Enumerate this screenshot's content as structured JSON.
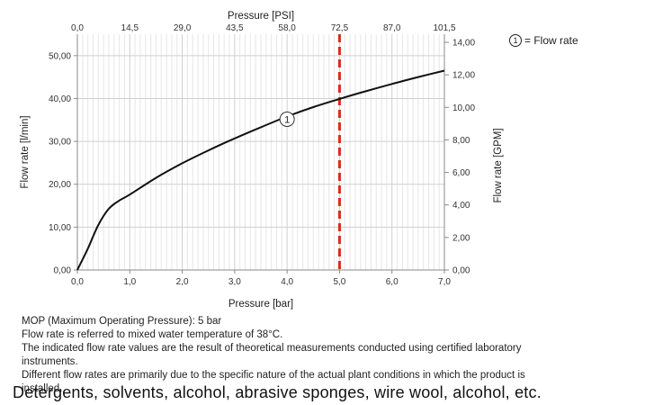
{
  "chart_data": {
    "type": "line",
    "title": "",
    "xlabel": "Pressure [bar]",
    "x2label": "Pressure [PSI]",
    "ylabel": "Flow rate [l/min]",
    "y2label": "Flow rate [GPM]",
    "xlim": [
      0,
      7
    ],
    "ylim": [
      0,
      55
    ],
    "y2lim": [
      0,
      14.5
    ],
    "x_ticks": [
      "0,0",
      "1,0",
      "2,0",
      "3,0",
      "4,0",
      "5,0",
      "6,0",
      "7,0"
    ],
    "x2_ticks": [
      "0,0",
      "14,5",
      "29,0",
      "43,5",
      "58,0",
      "72,5",
      "87,0",
      "101,5"
    ],
    "y_ticks": [
      "0,00",
      "10,00",
      "20,00",
      "30,00",
      "40,00",
      "50,00"
    ],
    "y2_ticks": [
      "0,00",
      "2,00",
      "4,00",
      "6,00",
      "8,00",
      "10,00",
      "12,00",
      "14,00"
    ],
    "grid": true,
    "series": [
      {
        "name": "Flow rate",
        "color": "#111111",
        "x": [
          0,
          0.2,
          0.4,
          0.6,
          0.8,
          1.0,
          1.5,
          2.0,
          2.5,
          3.0,
          3.5,
          4.0,
          4.5,
          5.0,
          5.5,
          6.0,
          6.5,
          7.0
        ],
        "y": [
          0,
          5,
          10.5,
          14.3,
          16.2,
          17.6,
          21.5,
          24.9,
          27.9,
          30.7,
          33.3,
          35.8,
          38.0,
          39.9,
          41.7,
          43.4,
          45.0,
          46.5
        ]
      }
    ],
    "annotations": [
      {
        "text": "1",
        "x": 4.0,
        "y": 36.0
      }
    ],
    "reference_line": {
      "x": 5.0,
      "color": "#d62d20",
      "style": "dashed"
    },
    "legend": {
      "marker": "1",
      "text": "= Flow rate",
      "placement": "top-right"
    }
  },
  "notes": [
    "MOP (Maximum Operating Pressure): 5 bar",
    "Flow rate is referred to mixed water temperature of 38°C.",
    "The indicated flow rate values are the result of theoretical measurements conducted using certified laboratory",
    "instruments.",
    "Different flow rates are primarily due to the specific nature of the actual plant conditions in which the product is",
    "installed."
  ],
  "bottom_text": "Detergents, solvents, alcohol, abrasive sponges, wire wool, alcohol, etc."
}
